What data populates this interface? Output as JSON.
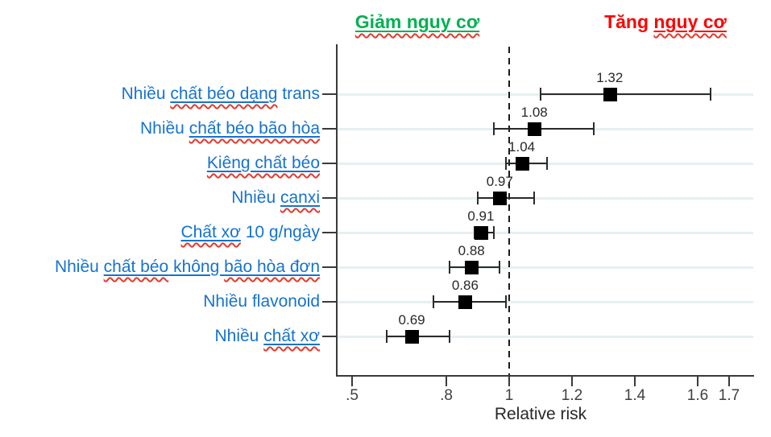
{
  "page": {
    "background": "#ffffff"
  },
  "colors": {
    "category_label": "#1673CE",
    "decrease_title": "#00B050",
    "increase_title": "#FF0000",
    "spellcheck_squiggle": "#E23B2E",
    "axis": "#3A3A3A",
    "gridline": "#E7EFF2",
    "error_bar": "#2B2B2B",
    "marker": "#000000",
    "value_label": "#282828",
    "tick_label": "#404040",
    "reference_line": "#1A1A1A"
  },
  "annotations": {
    "left_title": {
      "text": "Giảm nguy cơ",
      "color": "#00B050",
      "segments": [
        {
          "t": "Giảm nguy cơ",
          "u": true,
          "sq": true
        }
      ]
    },
    "right_title": {
      "text": "Tăng nguy cơ",
      "color": "#FF0000",
      "segments": [
        {
          "t": "Tăng ",
          "u": false,
          "sq": false
        },
        {
          "t": "nguy cơ",
          "u": true,
          "sq": true
        }
      ]
    }
  },
  "chart_data": {
    "type": "scatter",
    "subtype": "forest-plot",
    "title": "",
    "xlabel": "Relative risk",
    "ylabel": "",
    "grid": true,
    "reference_line": 1.0,
    "xlim": [
      0.45,
      1.78
    ],
    "xticks": [
      {
        "label": ".5",
        "value": 0.5
      },
      {
        "label": ".8",
        "value": 0.8
      },
      {
        "label": "1",
        "value": 1.0
      },
      {
        "label": "1.2",
        "value": 1.2
      },
      {
        "label": "1.4",
        "value": 1.4
      },
      {
        "label": "1.6",
        "value": 1.6
      },
      {
        "label": "1.7",
        "value": 1.7
      }
    ],
    "categories": [
      "Nhiều chất béo dạng trans",
      "Nhiều chất béo bão hòa",
      "Kiêng chất béo",
      "Nhiều canxi",
      "Chất xơ 10 g/ngày",
      "Nhiều chất béo không bão hòa đơn",
      "Nhiều flavonoid",
      "Nhiều chất xơ"
    ],
    "series": [
      {
        "name": "relative-risk",
        "values": [
          1.32,
          1.08,
          1.04,
          0.97,
          0.91,
          0.88,
          0.86,
          0.69
        ],
        "ci_low": [
          1.1,
          0.95,
          0.99,
          0.9,
          0.89,
          0.81,
          0.76,
          0.61
        ],
        "ci_high": [
          1.64,
          1.27,
          1.12,
          1.08,
          0.95,
          0.97,
          0.99,
          0.81
        ],
        "value_labels": [
          "1.32",
          "1.08",
          "1.04",
          "0.97",
          "0.91",
          "0.88",
          "0.86",
          "0.69"
        ]
      }
    ],
    "points": [
      {
        "value": 1.32,
        "lo": 1.1,
        "hi": 1.64,
        "value_label": "1.32",
        "label_segments": [
          {
            "t": "Nhiều ",
            "u": false,
            "sq": false
          },
          {
            "t": "chất béo dạng",
            "u": true,
            "sq": true
          },
          {
            "t": " trans",
            "u": false,
            "sq": false
          }
        ]
      },
      {
        "value": 1.08,
        "lo": 0.95,
        "hi": 1.27,
        "value_label": "1.08",
        "label_segments": [
          {
            "t": "Nhiều ",
            "u": false,
            "sq": false
          },
          {
            "t": "chất béo bão hòa",
            "u": true,
            "sq": true
          }
        ]
      },
      {
        "value": 1.04,
        "lo": 0.99,
        "hi": 1.12,
        "value_label": "1.04",
        "label_segments": [
          {
            "t": "Kiêng chất béo",
            "u": true,
            "sq": true
          }
        ]
      },
      {
        "value": 0.97,
        "lo": 0.9,
        "hi": 1.08,
        "value_label": "0.97",
        "label_segments": [
          {
            "t": "Nhiều ",
            "u": false,
            "sq": false
          },
          {
            "t": "canxi",
            "u": true,
            "sq": true
          }
        ]
      },
      {
        "value": 0.91,
        "lo": 0.89,
        "hi": 0.95,
        "value_label": "0.91",
        "label_segments": [
          {
            "t": "Chất xơ",
            "u": true,
            "sq": true
          },
          {
            "t": " 10 g/ngày",
            "u": false,
            "sq": false
          }
        ]
      },
      {
        "value": 0.88,
        "lo": 0.81,
        "hi": 0.97,
        "value_label": "0.88",
        "label_segments": [
          {
            "t": "Nhiều ",
            "u": false,
            "sq": false
          },
          {
            "t": "chất béo",
            "u": true,
            "sq": true
          },
          {
            "t": " không ",
            "u": true,
            "sq": false
          },
          {
            "t": "bão hòa đơn",
            "u": true,
            "sq": true
          }
        ]
      },
      {
        "value": 0.86,
        "lo": 0.76,
        "hi": 0.99,
        "value_label": "0.86",
        "label_segments": [
          {
            "t": "Nhiều flavonoid",
            "u": false,
            "sq": false
          }
        ]
      },
      {
        "value": 0.69,
        "lo": 0.61,
        "hi": 0.81,
        "value_label": "0.69",
        "label_segments": [
          {
            "t": "Nhiều ",
            "u": false,
            "sq": false
          },
          {
            "t": "chất xơ",
            "u": true,
            "sq": true
          }
        ]
      }
    ]
  }
}
